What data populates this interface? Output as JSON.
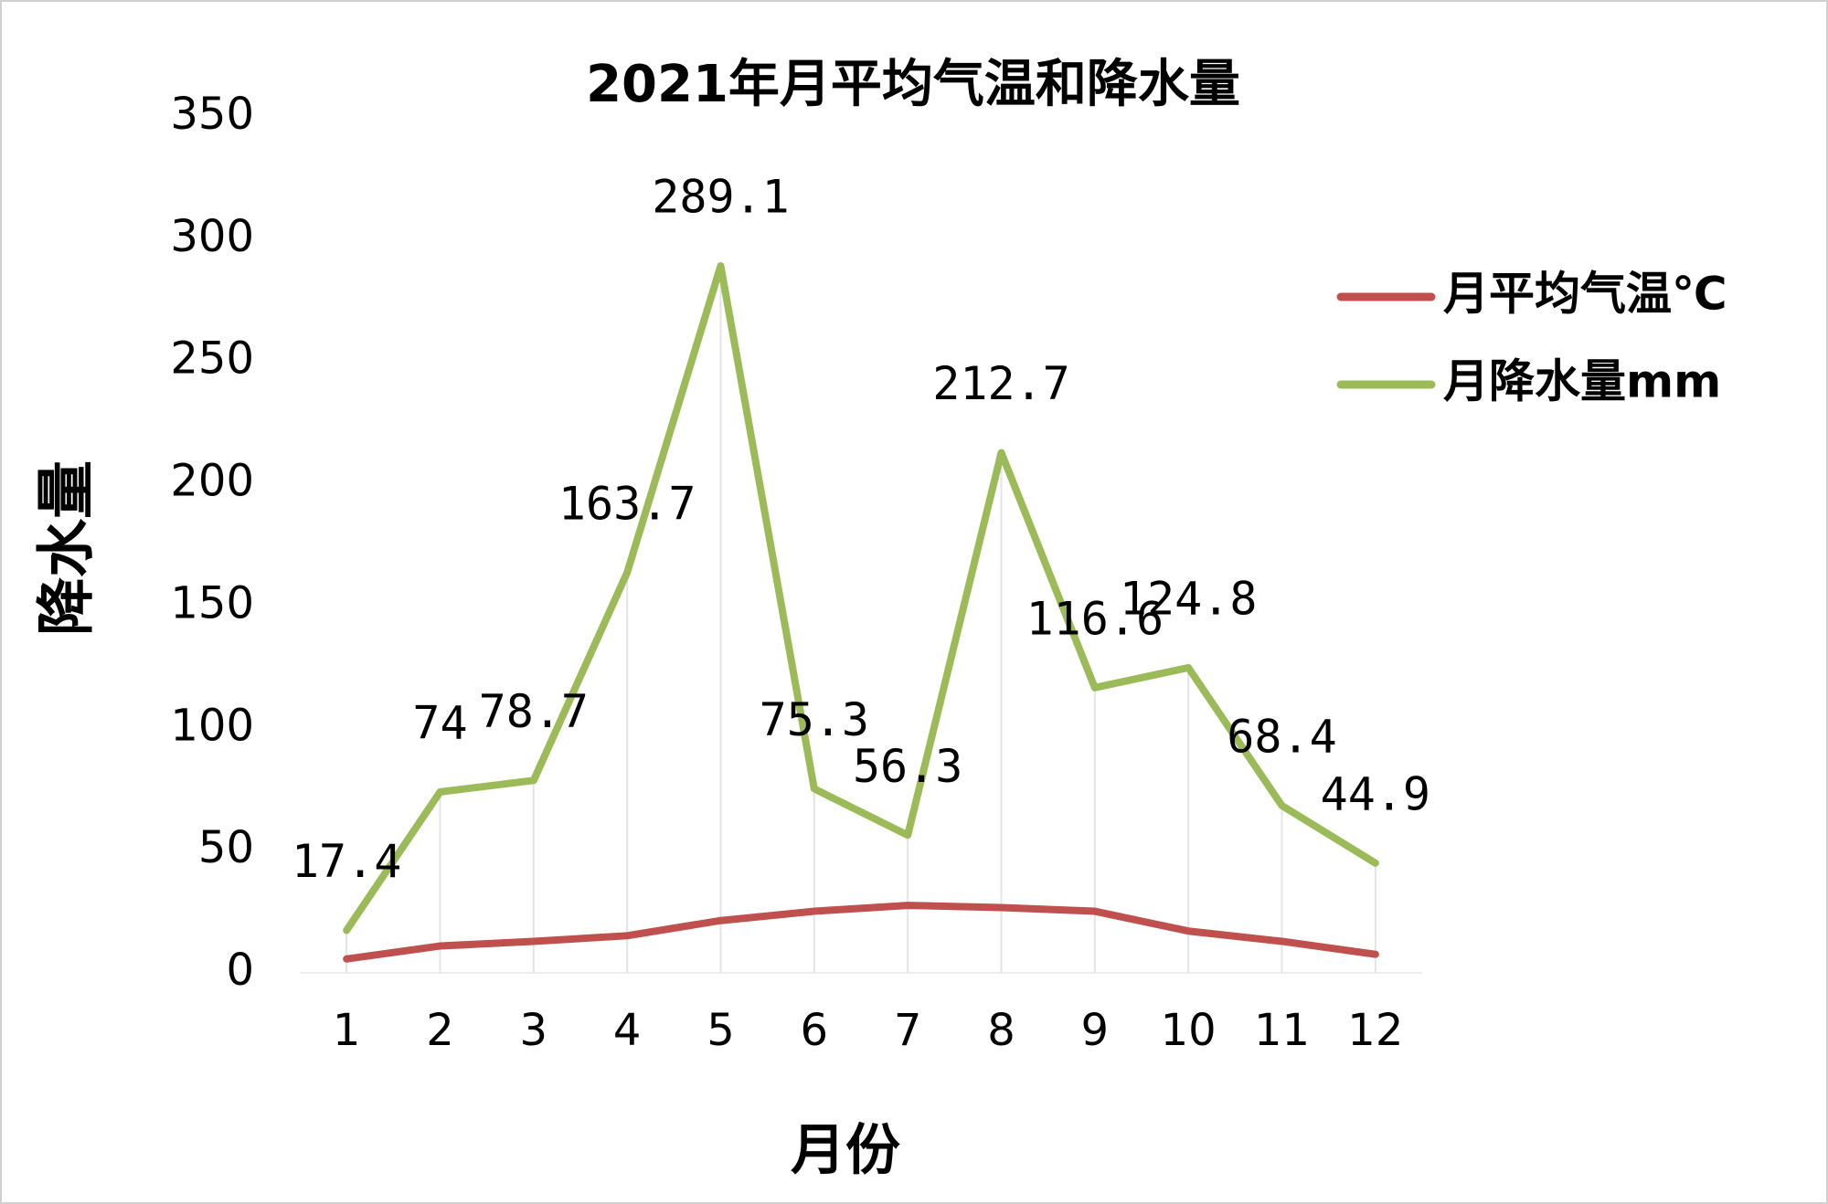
{
  "chart_data": {
    "type": "line",
    "title": "2021年月平均气温和降水量",
    "x_label": "月份",
    "y_label": "降水量",
    "categories": [
      "1",
      "2",
      "3",
      "4",
      "5",
      "6",
      "7",
      "8",
      "9",
      "10",
      "11",
      "12"
    ],
    "series": [
      {
        "name": "月平均气温℃",
        "color": "#c0504d",
        "values": [
          5.7,
          11,
          12.9,
          15.2,
          21.4,
          25.2,
          27.6,
          26.7,
          25.2,
          17.1,
          12.9,
          7.6
        ]
      },
      {
        "name": "月降水量mm",
        "color": "#9bbb59",
        "values": [
          17.4,
          74,
          78.7,
          163.7,
          289.1,
          75.3,
          56.3,
          212.7,
          116.6,
          124.8,
          68.4,
          44.9
        ],
        "data_labels": true
      }
    ],
    "ylim": [
      0,
      350
    ],
    "yticks": [
      0,
      50,
      100,
      150,
      200,
      250,
      300,
      350
    ],
    "legend": "right"
  }
}
